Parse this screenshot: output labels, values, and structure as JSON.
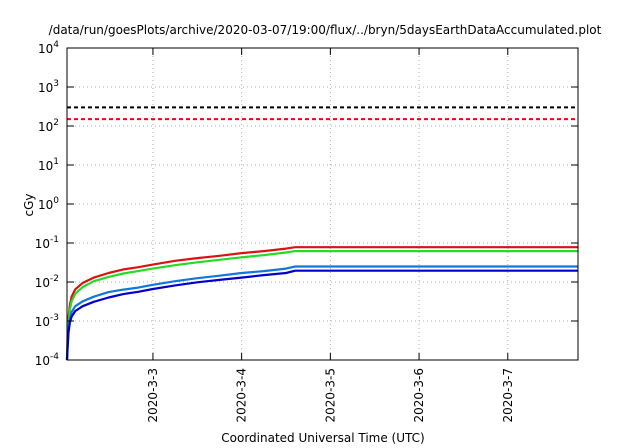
{
  "chart_data": {
    "type": "line",
    "title": "/data/run/goesPlots/archive/2020-03-07/19:00/flux/../bryn/5daysEarthDataAccumulated.plot",
    "xlabel": "Coordinated Universal Time (UTC)",
    "ylabel": "cGy",
    "yscale": "log",
    "ylim": [
      0.0001,
      10000
    ],
    "xlim": [
      "2020-03-02 00:45",
      "2020-03-07 19:00"
    ],
    "grid": true,
    "y_ticks": [
      {
        "base": "10",
        "exp": "-4",
        "value": 0.0001
      },
      {
        "base": "10",
        "exp": "-3",
        "value": 0.001
      },
      {
        "base": "10",
        "exp": "-2",
        "value": 0.01
      },
      {
        "base": "10",
        "exp": "-1",
        "value": 0.1
      },
      {
        "base": "10",
        "exp": "0",
        "value": 1
      },
      {
        "base": "10",
        "exp": "1",
        "value": 10
      },
      {
        "base": "10",
        "exp": "2",
        "value": 100
      },
      {
        "base": "10",
        "exp": "3",
        "value": 1000
      },
      {
        "base": "10",
        "exp": "4",
        "value": 10000
      }
    ],
    "x_ticks": [
      {
        "label": "2020-3-3",
        "date": "2020-03-03 00:00"
      },
      {
        "label": "2020-3-4",
        "date": "2020-03-04 00:00"
      },
      {
        "label": "2020-3-5",
        "date": "2020-03-05 00:00"
      },
      {
        "label": "2020-3-6",
        "date": "2020-03-06 00:00"
      },
      {
        "label": "2020-3-7",
        "date": "2020-03-07 00:00"
      }
    ],
    "threshold_lines": [
      {
        "value": 300,
        "color": "#000000",
        "style": "dashed"
      },
      {
        "value": 150,
        "color": "#ff0000",
        "style": "dashed"
      }
    ],
    "series": [
      {
        "color": "#dd1111",
        "points": [
          [
            "2020-03-02 00:45",
            0.0001
          ],
          [
            "2020-03-02 00:55",
            0.0004
          ],
          [
            "2020-03-02 01:10",
            0.0012
          ],
          [
            "2020-03-02 01:30",
            0.0025
          ],
          [
            "2020-03-02 02:00",
            0.0042
          ],
          [
            "2020-03-02 03:00",
            0.0065
          ],
          [
            "2020-03-02 05:00",
            0.0095
          ],
          [
            "2020-03-02 08:00",
            0.013
          ],
          [
            "2020-03-02 12:00",
            0.017
          ],
          [
            "2020-03-02 16:00",
            0.021
          ],
          [
            "2020-03-02 20:00",
            0.024
          ],
          [
            "2020-03-03 00:00",
            0.028
          ],
          [
            "2020-03-03 06:00",
            0.035
          ],
          [
            "2020-03-03 12:00",
            0.041
          ],
          [
            "2020-03-03 18:00",
            0.047
          ],
          [
            "2020-03-04 00:00",
            0.055
          ],
          [
            "2020-03-04 06:00",
            0.062
          ],
          [
            "2020-03-04 12:00",
            0.072
          ],
          [
            "2020-03-04 14:30",
            0.078
          ],
          [
            "2020-03-07 19:00",
            0.078
          ]
        ]
      },
      {
        "color": "#22dd22",
        "points": [
          [
            "2020-03-02 00:45",
            0.0001
          ],
          [
            "2020-03-02 00:55",
            0.0003
          ],
          [
            "2020-03-02 01:10",
            0.0009
          ],
          [
            "2020-03-02 01:30",
            0.0019
          ],
          [
            "2020-03-02 02:00",
            0.0032
          ],
          [
            "2020-03-02 03:00",
            0.005
          ],
          [
            "2020-03-02 05:00",
            0.0074
          ],
          [
            "2020-03-02 08:00",
            0.0105
          ],
          [
            "2020-03-02 12:00",
            0.0135
          ],
          [
            "2020-03-02 16:00",
            0.0165
          ],
          [
            "2020-03-02 20:00",
            0.019
          ],
          [
            "2020-03-03 00:00",
            0.022
          ],
          [
            "2020-03-03 06:00",
            0.027
          ],
          [
            "2020-03-03 12:00",
            0.032
          ],
          [
            "2020-03-03 18:00",
            0.037
          ],
          [
            "2020-03-04 00:00",
            0.043
          ],
          [
            "2020-03-04 06:00",
            0.049
          ],
          [
            "2020-03-04 12:00",
            0.057
          ],
          [
            "2020-03-04 14:30",
            0.062
          ],
          [
            "2020-03-07 19:00",
            0.062
          ]
        ]
      },
      {
        "color": "#1177dd",
        "points": [
          [
            "2020-03-02 00:45",
            0.0001
          ],
          [
            "2020-03-02 00:55",
            0.00025
          ],
          [
            "2020-03-02 01:10",
            0.0006
          ],
          [
            "2020-03-02 01:30",
            0.0011
          ],
          [
            "2020-03-02 02:00",
            0.0017
          ],
          [
            "2020-03-02 03:00",
            0.0024
          ],
          [
            "2020-03-02 05:00",
            0.0032
          ],
          [
            "2020-03-02 08:00",
            0.0042
          ],
          [
            "2020-03-02 12:00",
            0.0055
          ],
          [
            "2020-03-02 16:00",
            0.0064
          ],
          [
            "2020-03-02 20:00",
            0.0072
          ],
          [
            "2020-03-03 00:00",
            0.0085
          ],
          [
            "2020-03-03 06:00",
            0.0105
          ],
          [
            "2020-03-03 12:00",
            0.0125
          ],
          [
            "2020-03-03 18:00",
            0.0145
          ],
          [
            "2020-03-04 00:00",
            0.017
          ],
          [
            "2020-03-04 06:00",
            0.019
          ],
          [
            "2020-03-04 12:00",
            0.022
          ],
          [
            "2020-03-04 14:30",
            0.025
          ],
          [
            "2020-03-07 19:00",
            0.025
          ]
        ]
      },
      {
        "color": "#0000cc",
        "points": [
          [
            "2020-03-02 00:45",
            0.0001
          ],
          [
            "2020-03-02 00:55",
            0.0002
          ],
          [
            "2020-03-02 01:10",
            0.0005
          ],
          [
            "2020-03-02 01:30",
            0.0009
          ],
          [
            "2020-03-02 02:00",
            0.0013
          ],
          [
            "2020-03-02 03:00",
            0.0018
          ],
          [
            "2020-03-02 05:00",
            0.0024
          ],
          [
            "2020-03-02 08:00",
            0.0031
          ],
          [
            "2020-03-02 12:00",
            0.004
          ],
          [
            "2020-03-02 16:00",
            0.0049
          ],
          [
            "2020-03-02 20:00",
            0.0056
          ],
          [
            "2020-03-03 00:00",
            0.0066
          ],
          [
            "2020-03-03 06:00",
            0.0082
          ],
          [
            "2020-03-03 12:00",
            0.0098
          ],
          [
            "2020-03-03 18:00",
            0.0113
          ],
          [
            "2020-03-04 00:00",
            0.013
          ],
          [
            "2020-03-04 06:00",
            0.015
          ],
          [
            "2020-03-04 12:00",
            0.017
          ],
          [
            "2020-03-04 14:30",
            0.0195
          ],
          [
            "2020-03-07 19:00",
            0.0195
          ]
        ]
      }
    ]
  }
}
